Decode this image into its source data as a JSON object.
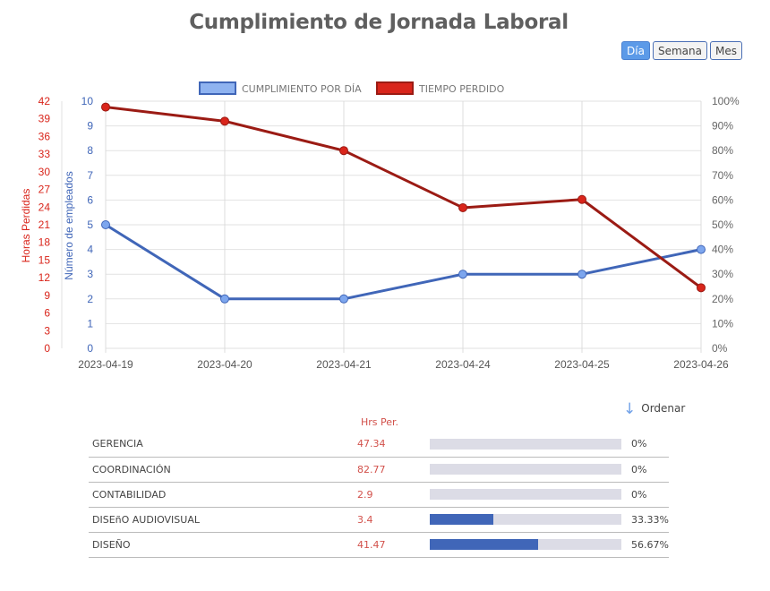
{
  "page": {
    "title": "Cumplimiento de Jornada Laboral",
    "range_buttons": [
      {
        "label": "Día",
        "active": true
      },
      {
        "label": "Semana",
        "active": false
      },
      {
        "label": "Mes",
        "active": false
      }
    ]
  },
  "chart_data": {
    "type": "line",
    "title": "Cumplimiento de Jornada Laboral",
    "categories": [
      "2023-04-19",
      "2023-04-20",
      "2023-04-21",
      "2023-04-24",
      "2023-04-25",
      "2023-04-26"
    ],
    "series": [
      {
        "name": "CUMPLIMIENTO POR DÍA",
        "axis": "employees",
        "color": "#4066b8",
        "marker_color": "#7da6ee",
        "values": [
          5,
          2,
          2,
          3,
          3,
          4
        ]
      },
      {
        "name": "TIEMPO PERDIDO",
        "axis": "hours",
        "color": "#9b1b14",
        "marker_color": "#d9251b",
        "values": [
          41.0,
          38.6,
          33.6,
          23.9,
          25.3,
          10.3
        ]
      }
    ],
    "axes": {
      "hours": {
        "label": "Horas Perdidas",
        "range": [
          0,
          42
        ],
        "ticks": [
          "0",
          "3",
          "6",
          "9",
          "12",
          "15",
          "18",
          "21",
          "24",
          "27",
          "30",
          "33",
          "36",
          "39",
          "42"
        ],
        "color": "#d9251b"
      },
      "employees": {
        "label": "Número de empleados",
        "range": [
          0,
          10
        ],
        "ticks": [
          "0",
          "1",
          "2",
          "3",
          "4",
          "5",
          "6",
          "7",
          "8",
          "9",
          "10"
        ],
        "color": "#4066b8"
      },
      "percent": {
        "label": "",
        "range": [
          0,
          100
        ],
        "ticks": [
          "0%",
          "10%",
          "20%",
          "30%",
          "40%",
          "50%",
          "60%",
          "70%",
          "80%",
          "90%",
          "100%"
        ],
        "color": "#666666"
      }
    },
    "grid": true,
    "legend": "top-center"
  },
  "table": {
    "sort_label": "Ordenar",
    "hours_header": "Hrs Per.",
    "rows": [
      {
        "name": "GERENCIA",
        "hours": "47.34",
        "percent_value": 0,
        "percent": "0%"
      },
      {
        "name": "COORDINACIÓN",
        "hours": "82.77",
        "percent_value": 0,
        "percent": "0%"
      },
      {
        "name": "CONTABILIDAD",
        "hours": "2.9",
        "percent_value": 0,
        "percent": "0%"
      },
      {
        "name": "DISEñO AUDIOVISUAL",
        "hours": "3.4",
        "percent_value": 33.33,
        "percent": "33.33%"
      },
      {
        "name": "DISEÑO",
        "hours": "41.47",
        "percent_value": 56.67,
        "percent": "56.67%"
      }
    ]
  }
}
